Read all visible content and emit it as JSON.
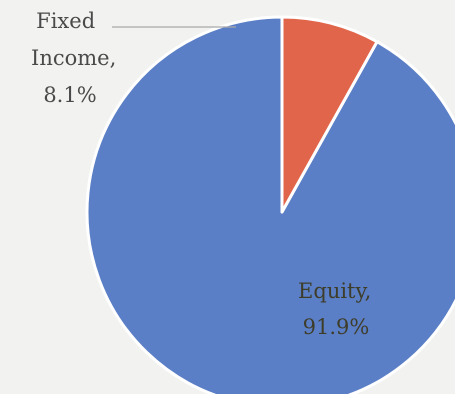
{
  "chart_data": {
    "type": "pie",
    "title": "",
    "slices": [
      {
        "name": "Equity",
        "value": 91.9,
        "label_lines": [
          "Equity,",
          "91.9%"
        ],
        "color": "#5b7fc6",
        "label_color": "#3d3d2a"
      },
      {
        "name": "Fixed Income",
        "value": 8.1,
        "label_lines": [
          "Fixed",
          "Income,",
          "8.1%"
        ],
        "color": "#e1654a",
        "label_color": "#4a4a4a"
      }
    ],
    "start_angle_deg": 0,
    "direction": "counterclockwise",
    "slice_separator_color": "#ffffff",
    "leader_line_color": "#a9a9a9"
  }
}
